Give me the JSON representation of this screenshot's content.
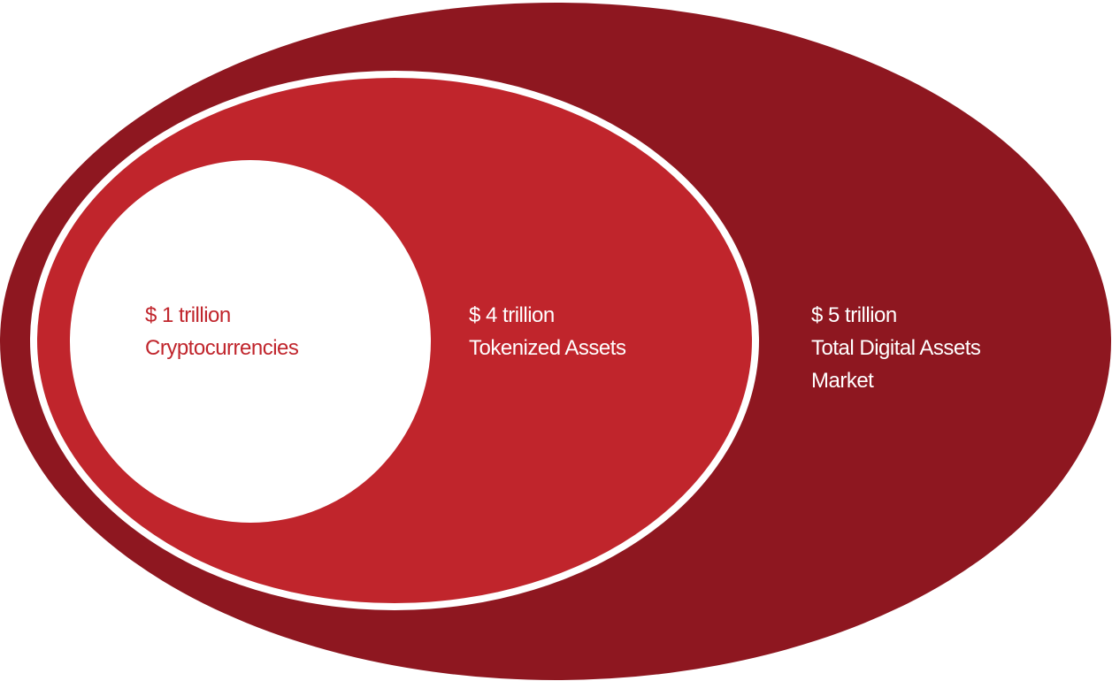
{
  "diagram": {
    "levels": [
      {
        "id": "inner",
        "value": "$ 1 trillion",
        "category": "Cryptocurrencies",
        "category_line2": ""
      },
      {
        "id": "middle",
        "value": "$ 4 trillion",
        "category": "Tokenized Assets",
        "category_line2": ""
      },
      {
        "id": "outer",
        "value": "$ 5 trillion",
        "category": "Total Digital Assets",
        "category_line2": "Market"
      }
    ],
    "colors": {
      "outer": "#8e1720",
      "middle": "#c0252c",
      "inner": "#ffffff",
      "border": "#ffffff"
    }
  }
}
